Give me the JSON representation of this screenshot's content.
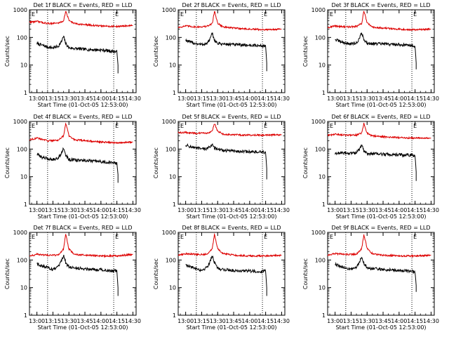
{
  "x_tick_labels": [
    "13:00",
    "13:15",
    "13:30",
    "13:45",
    "14:00",
    "14:15",
    "14:30"
  ],
  "y_tick_labels": [
    "1",
    "10",
    "100",
    "1000"
  ],
  "ylabel": "Counts/sec",
  "xlabel": "Start Time (01-Oct-05 12:53:00)",
  "marker_left": "E",
  "marker_right": "E",
  "colors": {
    "events": "#000000",
    "lld": "#dd0000",
    "axes": "#000000",
    "background": "#ffffff"
  },
  "chart_data": [
    {
      "type": "line",
      "title": "Det 1f BLACK = Events, RED = LLD",
      "xlim": [
        "12:53",
        "14:33"
      ],
      "ylim": [
        1,
        1000
      ],
      "yscale": "log",
      "series": [
        {
          "name": "Events",
          "x": [
            "13:00",
            "13:05",
            "13:10",
            "13:15",
            "13:20",
            "13:23",
            "13:25",
            "13:27",
            "13:30",
            "13:35",
            "13:45",
            "14:00",
            "14:10",
            "14:15",
            "14:16",
            "14:16"
          ],
          "y": [
            60,
            52,
            45,
            42,
            48,
            70,
            110,
            60,
            42,
            40,
            37,
            35,
            32,
            30,
            10,
            5
          ]
        },
        {
          "name": "LLD",
          "x": [
            "12:53",
            "13:00",
            "13:10",
            "13:20",
            "13:25",
            "13:27",
            "13:30",
            "13:35",
            "13:45",
            "14:00",
            "14:15",
            "14:30"
          ],
          "y": [
            360,
            380,
            320,
            330,
            400,
            900,
            420,
            320,
            290,
            260,
            250,
            270
          ]
        }
      ]
    },
    {
      "type": "line",
      "title": "Det 2f BLACK = Events, RED = LLD",
      "xlim": [
        "12:53",
        "14:33"
      ],
      "ylim": [
        1,
        1000
      ],
      "yscale": "log",
      "series": [
        {
          "name": "Events",
          "x": [
            "13:00",
            "13:05",
            "13:10",
            "13:15",
            "13:20",
            "13:23",
            "13:25",
            "13:27",
            "13:30",
            "13:35",
            "13:45",
            "14:00",
            "14:10",
            "14:15",
            "14:16",
            "14:16"
          ],
          "y": [
            80,
            65,
            60,
            55,
            60,
            90,
            140,
            80,
            60,
            58,
            55,
            52,
            50,
            50,
            12,
            6
          ]
        },
        {
          "name": "LLD",
          "x": [
            "12:53",
            "13:00",
            "13:10",
            "13:20",
            "13:25",
            "13:27",
            "13:30",
            "13:35",
            "13:45",
            "14:00",
            "14:15",
            "14:30"
          ],
          "y": [
            230,
            260,
            240,
            250,
            320,
            900,
            330,
            240,
            220,
            200,
            190,
            200
          ]
        }
      ]
    },
    {
      "type": "line",
      "title": "Det 3f BLACK = Events, RED = LLD",
      "xlim": [
        "12:53",
        "14:33"
      ],
      "ylim": [
        1,
        1000
      ],
      "yscale": "log",
      "series": [
        {
          "name": "Events",
          "x": [
            "13:00",
            "13:05",
            "13:10",
            "13:15",
            "13:20",
            "13:23",
            "13:25",
            "13:27",
            "13:30",
            "13:35",
            "13:45",
            "14:00",
            "14:10",
            "14:15",
            "14:16",
            "14:16"
          ],
          "y": [
            85,
            70,
            62,
            58,
            62,
            95,
            150,
            85,
            62,
            60,
            58,
            55,
            52,
            50,
            12,
            7
          ]
        },
        {
          "name": "LLD",
          "x": [
            "12:53",
            "13:00",
            "13:10",
            "13:20",
            "13:25",
            "13:27",
            "13:30",
            "13:35",
            "13:45",
            "14:00",
            "14:15",
            "14:30"
          ],
          "y": [
            230,
            260,
            240,
            250,
            320,
            950,
            330,
            240,
            220,
            200,
            190,
            200
          ]
        }
      ]
    },
    {
      "type": "line",
      "title": "Det 4f BLACK = Events, RED = LLD",
      "xlim": [
        "12:53",
        "14:33"
      ],
      "ylim": [
        1,
        1000
      ],
      "yscale": "log",
      "series": [
        {
          "name": "Events",
          "x": [
            "13:00",
            "13:05",
            "13:10",
            "13:15",
            "13:20",
            "13:23",
            "13:25",
            "13:27",
            "13:30",
            "13:35",
            "13:45",
            "14:00",
            "14:10",
            "14:15",
            "14:16",
            "14:16"
          ],
          "y": [
            65,
            50,
            45,
            42,
            48,
            70,
            110,
            60,
            42,
            40,
            38,
            35,
            32,
            30,
            12,
            6
          ]
        },
        {
          "name": "LLD",
          "x": [
            "12:53",
            "13:00",
            "13:10",
            "13:20",
            "13:25",
            "13:27",
            "13:30",
            "13:35",
            "13:45",
            "14:00",
            "14:15",
            "14:30"
          ],
          "y": [
            220,
            250,
            200,
            210,
            300,
            900,
            300,
            220,
            200,
            180,
            170,
            180
          ]
        }
      ]
    },
    {
      "type": "line",
      "title": "Det 5f BLACK = Events, RED = LLD",
      "xlim": [
        "12:53",
        "14:33"
      ],
      "ylim": [
        1,
        1000
      ],
      "yscale": "log",
      "series": [
        {
          "name": "Events",
          "x": [
            "13:00",
            "13:05",
            "13:10",
            "13:15",
            "13:20",
            "13:23",
            "13:25",
            "13:27",
            "13:30",
            "13:35",
            "13:45",
            "14:00",
            "14:10",
            "14:15",
            "14:16",
            "14:16"
          ],
          "y": [
            140,
            120,
            110,
            100,
            105,
            120,
            160,
            110,
            95,
            90,
            85,
            80,
            78,
            75,
            20,
            8
          ]
        },
        {
          "name": "LLD",
          "x": [
            "12:53",
            "13:00",
            "13:10",
            "13:20",
            "13:25",
            "13:27",
            "13:30",
            "13:35",
            "13:45",
            "14:00",
            "14:15",
            "14:30"
          ],
          "y": [
            390,
            400,
            370,
            380,
            450,
            850,
            450,
            350,
            330,
            320,
            320,
            330
          ]
        }
      ]
    },
    {
      "type": "line",
      "title": "Det 6f BLACK = Events, RED = LLD",
      "xlim": [
        "12:53",
        "14:33"
      ],
      "ylim": [
        1,
        1000
      ],
      "yscale": "log",
      "series": [
        {
          "name": "Events",
          "x": [
            "13:00",
            "13:05",
            "13:10",
            "13:15",
            "13:20",
            "13:23",
            "13:25",
            "13:27",
            "13:30",
            "13:35",
            "13:45",
            "14:00",
            "14:10",
            "14:15",
            "14:16",
            "14:16"
          ],
          "y": [
            65,
            75,
            70,
            70,
            75,
            100,
            140,
            85,
            70,
            68,
            65,
            62,
            60,
            60,
            15,
            7
          ]
        },
        {
          "name": "LLD",
          "x": [
            "12:53",
            "13:00",
            "13:10",
            "13:20",
            "13:25",
            "13:27",
            "13:30",
            "13:35",
            "13:45",
            "14:00",
            "14:15",
            "14:30"
          ],
          "y": [
            310,
            340,
            320,
            320,
            380,
            850,
            380,
            300,
            280,
            260,
            250,
            250
          ]
        }
      ]
    },
    {
      "type": "line",
      "title": "Det 7f BLACK = Events, RED = LLD",
      "xlim": [
        "12:53",
        "14:33"
      ],
      "ylim": [
        1,
        1000
      ],
      "yscale": "log",
      "series": [
        {
          "name": "Events",
          "x": [
            "13:00",
            "13:05",
            "13:10",
            "13:15",
            "13:20",
            "13:23",
            "13:25",
            "13:27",
            "13:30",
            "13:35",
            "13:45",
            "14:00",
            "14:10",
            "14:15",
            "14:16",
            "14:16"
          ],
          "y": [
            75,
            60,
            55,
            45,
            55,
            90,
            150,
            80,
            55,
            52,
            48,
            45,
            40,
            40,
            10,
            5
          ]
        },
        {
          "name": "LLD",
          "x": [
            "12:53",
            "13:00",
            "13:10",
            "13:20",
            "13:25",
            "13:27",
            "13:30",
            "13:35",
            "13:45",
            "14:00",
            "14:15",
            "14:30"
          ],
          "y": [
            140,
            160,
            150,
            150,
            250,
            850,
            250,
            160,
            150,
            140,
            140,
            160
          ]
        }
      ]
    },
    {
      "type": "line",
      "title": "Det 8f BLACK = Events, RED = LLD",
      "xlim": [
        "12:53",
        "14:33"
      ],
      "ylim": [
        1,
        1000
      ],
      "yscale": "log",
      "series": [
        {
          "name": "Events",
          "x": [
            "13:00",
            "13:05",
            "13:10",
            "13:15",
            "13:20",
            "13:23",
            "13:25",
            "13:27",
            "13:30",
            "13:35",
            "13:45",
            "14:00",
            "14:10",
            "14:15",
            "14:16",
            "14:16"
          ],
          "y": [
            70,
            55,
            50,
            42,
            55,
            90,
            150,
            80,
            50,
            45,
            42,
            40,
            38,
            40,
            10,
            5
          ]
        },
        {
          "name": "LLD",
          "x": [
            "12:53",
            "13:00",
            "13:10",
            "13:20",
            "13:25",
            "13:27",
            "13:30",
            "13:35",
            "13:45",
            "14:00",
            "14:15",
            "14:30"
          ],
          "y": [
            150,
            170,
            160,
            160,
            260,
            850,
            260,
            170,
            150,
            140,
            140,
            150
          ]
        }
      ]
    },
    {
      "type": "line",
      "title": "Det 9f BLACK = Events, RED = LLD",
      "xlim": [
        "12:53",
        "14:33"
      ],
      "ylim": [
        1,
        1000
      ],
      "yscale": "log",
      "series": [
        {
          "name": "Events",
          "x": [
            "13:00",
            "13:05",
            "13:10",
            "13:15",
            "13:20",
            "13:23",
            "13:25",
            "13:27",
            "13:30",
            "13:35",
            "13:45",
            "14:00",
            "14:10",
            "14:15",
            "14:16",
            "14:16"
          ],
          "y": [
            70,
            58,
            52,
            45,
            55,
            85,
            140,
            75,
            52,
            48,
            45,
            42,
            40,
            38,
            12,
            7
          ]
        },
        {
          "name": "LLD",
          "x": [
            "12:53",
            "13:00",
            "13:10",
            "13:20",
            "13:25",
            "13:27",
            "13:30",
            "13:35",
            "13:45",
            "14:00",
            "14:15",
            "14:30"
          ],
          "y": [
            150,
            170,
            160,
            160,
            260,
            850,
            260,
            170,
            150,
            140,
            140,
            150
          ]
        }
      ]
    }
  ]
}
